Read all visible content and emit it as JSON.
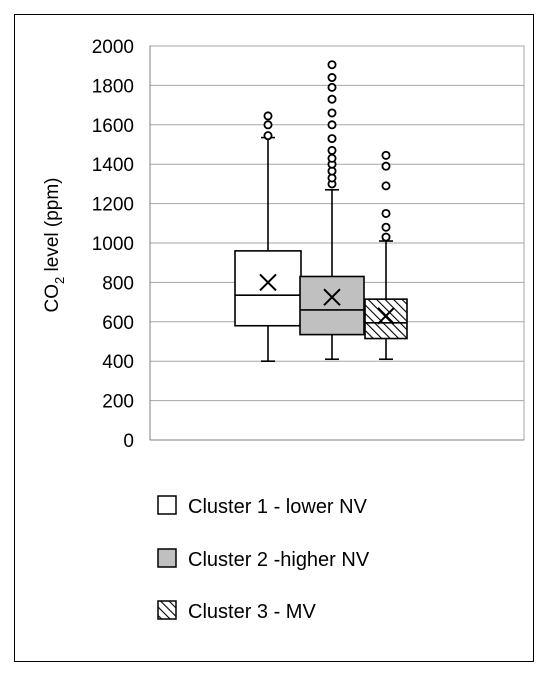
{
  "chart_data": {
    "type": "box",
    "ylabel_main": "CO",
    "ylabel_sub": "2",
    "ylabel_rest": " level (ppm)",
    "ylim": [
      0,
      2000
    ],
    "yticks": [
      "0",
      "200",
      "400",
      "600",
      "800",
      "1000",
      "1200",
      "1400",
      "1600",
      "1800",
      "2000"
    ],
    "grid": "horizontal",
    "legend_position": "bottom",
    "series": [
      {
        "name": "Cluster 1 - lower NV",
        "fill": "#ffffff",
        "pattern": "none",
        "min": 400,
        "q1": 580,
        "median": 735,
        "q3": 960,
        "max": 1535,
        "mean": 800,
        "outliers": [
          1545,
          1600,
          1645
        ]
      },
      {
        "name": "Cluster 2 -higher NV",
        "fill": "#c0c0c0",
        "pattern": "none",
        "min": 410,
        "q1": 535,
        "median": 660,
        "q3": 830,
        "max": 1270,
        "mean": 725,
        "outliers": [
          1300,
          1330,
          1365,
          1400,
          1430,
          1470,
          1530,
          1600,
          1660,
          1730,
          1790,
          1840,
          1905
        ]
      },
      {
        "name": "Cluster 3 - MV",
        "fill": "#ffffff",
        "pattern": "diagonal-hatch",
        "min": 410,
        "q1": 515,
        "median": 595,
        "q3": 715,
        "max": 1010,
        "mean": 630,
        "outliers": [
          1030,
          1080,
          1150,
          1290,
          1390,
          1445
        ]
      }
    ]
  }
}
